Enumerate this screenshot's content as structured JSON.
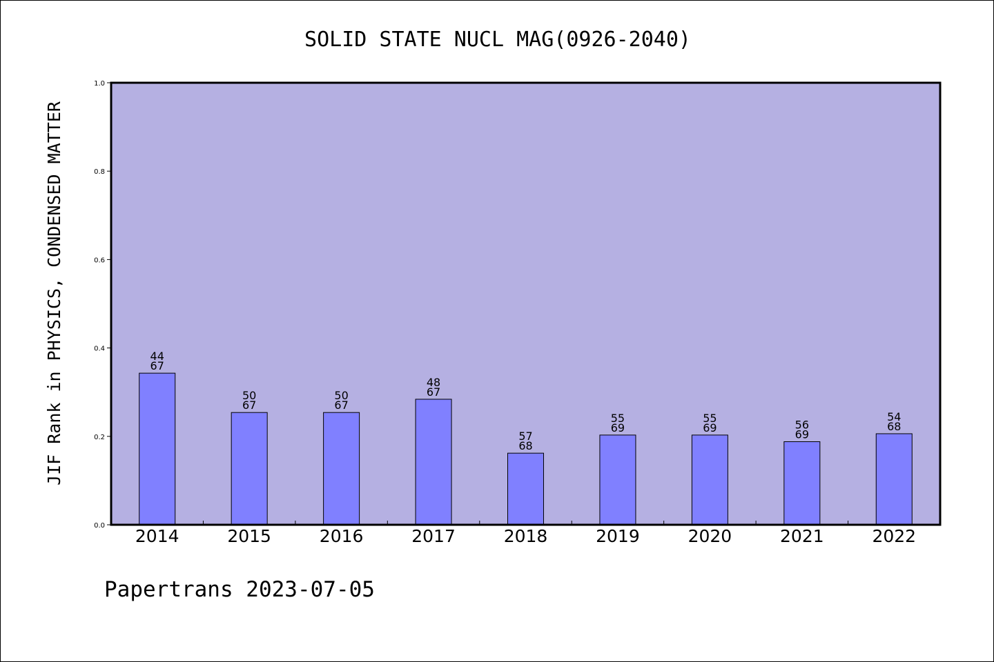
{
  "chart_data": {
    "type": "bar",
    "title": "SOLID STATE NUCL MAG(0926-2040)",
    "ylabel": "JIF Rank in PHYSICS, CONDENSED MATTER",
    "xlabel": "",
    "ylim": [
      0,
      1
    ],
    "yticks": [
      "0.0",
      "0.2",
      "0.4",
      "0.6",
      "0.8",
      "1.0"
    ],
    "categories": [
      "2014",
      "2015",
      "2016",
      "2017",
      "2018",
      "2019",
      "2020",
      "2021",
      "2022"
    ],
    "values": [
      0.343,
      0.254,
      0.254,
      0.284,
      0.162,
      0.203,
      0.203,
      0.188,
      0.206
    ],
    "labels": [
      [
        "44",
        "67"
      ],
      [
        "50",
        "67"
      ],
      [
        "50",
        "67"
      ],
      [
        "48",
        "67"
      ],
      [
        "57",
        "68"
      ],
      [
        "55",
        "69"
      ],
      [
        "55",
        "69"
      ],
      [
        "56",
        "69"
      ],
      [
        "54",
        "68"
      ]
    ],
    "grid": false,
    "colors": {
      "plot_background": "#b5b0e2",
      "bar_fill": "#8080ff",
      "bar_stroke": "#000000"
    }
  },
  "footer": {
    "text": "Papertrans 2023-07-05"
  }
}
